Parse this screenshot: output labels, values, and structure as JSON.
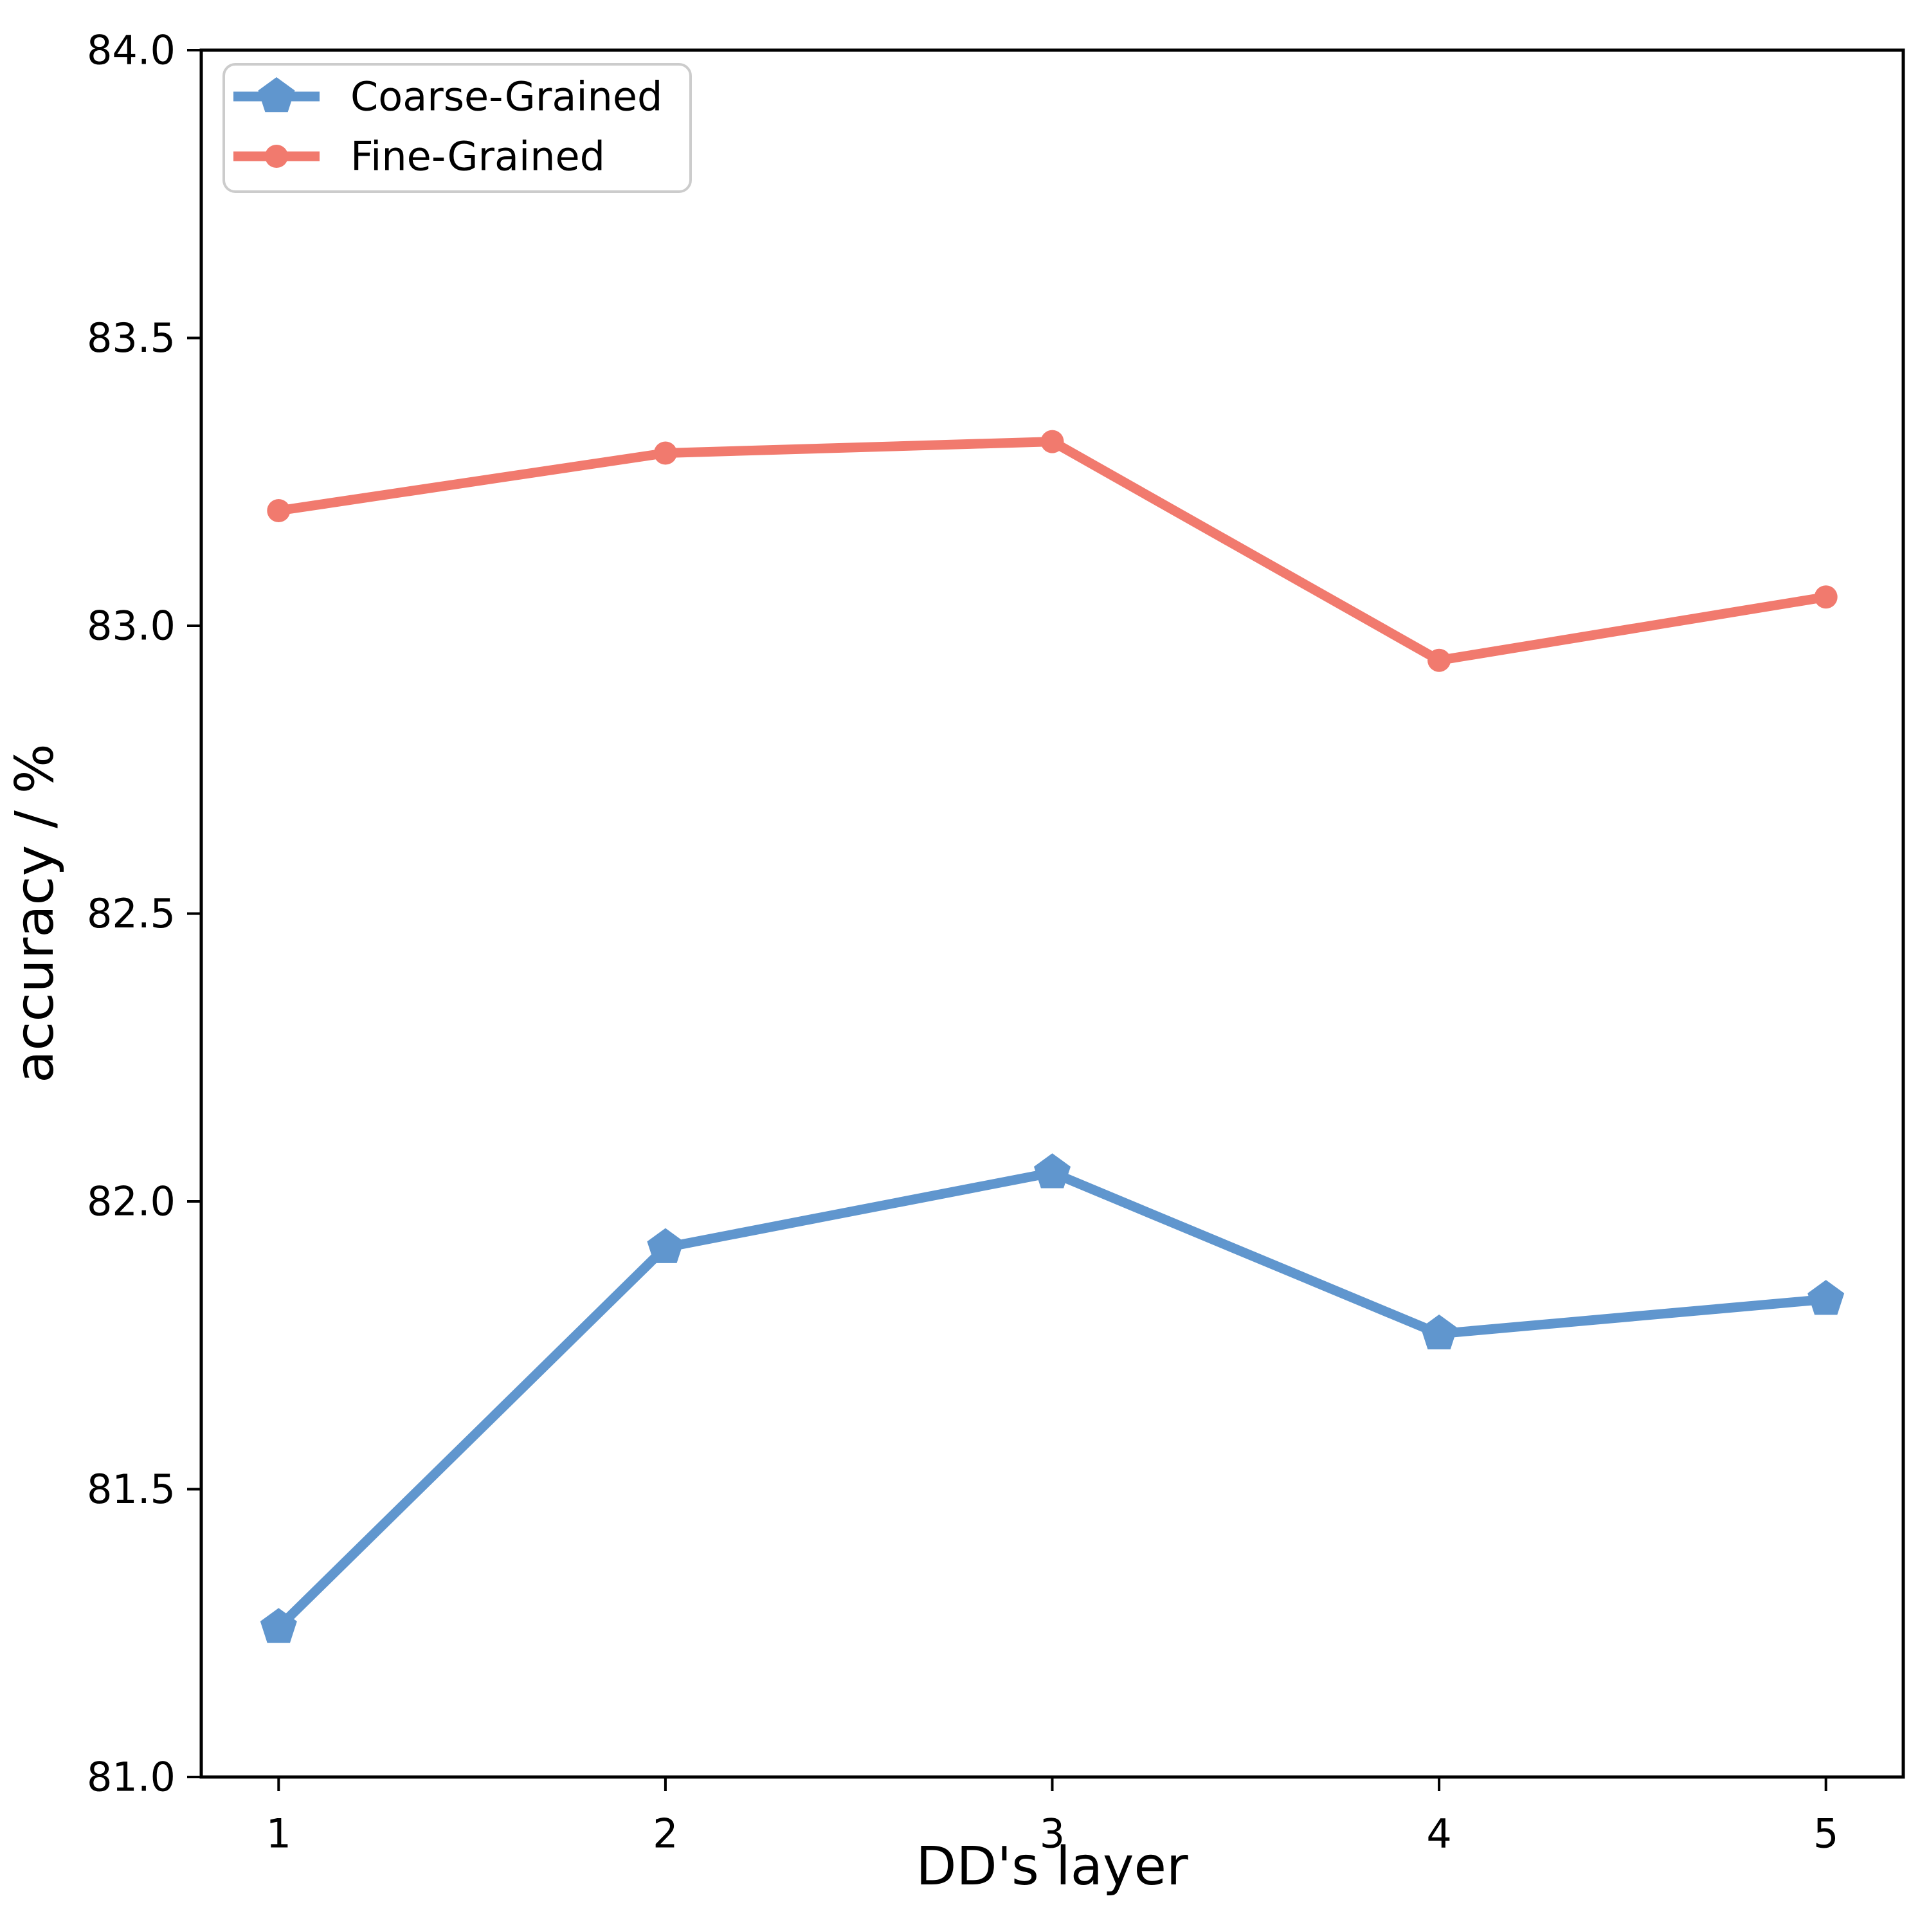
{
  "chart_data": {
    "type": "line",
    "title": "",
    "xlabel": "DD's layer",
    "ylabel": "accuracy / %",
    "x": [
      1,
      2,
      3,
      4,
      5
    ],
    "series": [
      {
        "name": "Coarse-Grained",
        "marker": "pentagon",
        "color": "#6096CE",
        "values": [
          81.26,
          81.92,
          82.05,
          81.77,
          81.83
        ]
      },
      {
        "name": "Fine-Grained",
        "marker": "circle",
        "color": "#F17A6E",
        "values": [
          83.2,
          83.3,
          83.32,
          82.94,
          83.05
        ]
      }
    ],
    "xlim": [
      0.8,
      5.2
    ],
    "ylim": [
      81.0,
      84.0
    ],
    "xticks": {
      "values": [
        1,
        2,
        3,
        4,
        5
      ],
      "labels": [
        "1",
        "2",
        "3",
        "4",
        "5"
      ]
    },
    "yticks": {
      "values": [
        81.0,
        81.5,
        82.0,
        82.5,
        83.0,
        83.5,
        84.0
      ],
      "labels": [
        "81.0",
        "81.5",
        "82.0",
        "82.5",
        "83.0",
        "83.5",
        "84.0"
      ]
    },
    "grid": false,
    "legend": {
      "position": "upper left",
      "items": [
        "Coarse-Grained",
        "Fine-Grained"
      ]
    },
    "axis_color": "#000000",
    "background": "#FFFFFF"
  }
}
